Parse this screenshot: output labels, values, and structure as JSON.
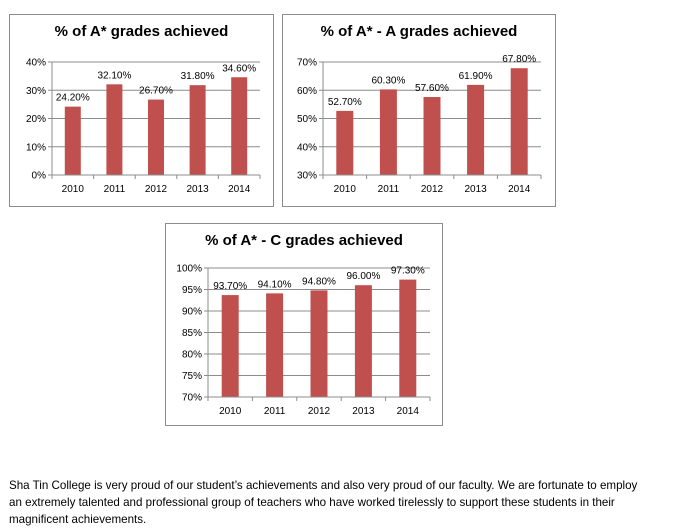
{
  "chart_data": [
    {
      "type": "bar",
      "title": "% of A* grades achieved",
      "categories": [
        "2010",
        "2011",
        "2012",
        "2013",
        "2014"
      ],
      "values": [
        24.2,
        32.1,
        26.7,
        31.8,
        34.6
      ],
      "value_labels": [
        "24.20%",
        "32.10%",
        "26.70%",
        "31.80%",
        "34.60%"
      ],
      "ylim": [
        0,
        40
      ],
      "yticks": [
        0,
        10,
        20,
        30,
        40
      ],
      "ytick_labels": [
        "0%",
        "10%",
        "20%",
        "30%",
        "40%"
      ],
      "grid": true,
      "bar_color": "#c0504d"
    },
    {
      "type": "bar",
      "title": "% of A* - A grades achieved",
      "categories": [
        "2010",
        "2011",
        "2012",
        "2013",
        "2014"
      ],
      "values": [
        52.7,
        60.3,
        57.6,
        61.9,
        67.8
      ],
      "value_labels": [
        "52.70%",
        "60.30%",
        "57.60%",
        "61.90%",
        "67.80%"
      ],
      "ylim": [
        30,
        70
      ],
      "yticks": [
        30,
        40,
        50,
        60,
        70
      ],
      "ytick_labels": [
        "30%",
        "40%",
        "50%",
        "60%",
        "70%"
      ],
      "grid": true,
      "bar_color": "#c0504d"
    },
    {
      "type": "bar",
      "title": "% of A* - C grades achieved",
      "categories": [
        "2010",
        "2011",
        "2012",
        "2013",
        "2014"
      ],
      "values": [
        93.7,
        94.1,
        94.8,
        96.0,
        97.3
      ],
      "value_labels": [
        "93.70%",
        "94.10%",
        "94.80%",
        "96.00%",
        "97.30%"
      ],
      "ylim": [
        70,
        100
      ],
      "yticks": [
        70,
        75,
        80,
        85,
        90,
        95,
        100
      ],
      "ytick_labels": [
        "70%",
        "75%",
        "80%",
        "85%",
        "90%",
        "95%",
        "100%"
      ],
      "grid": true,
      "bar_color": "#c0504d"
    }
  ],
  "caption": "Sha Tin College is very proud of our student’s achievements and also very proud of our faculty. We are fortunate to employ an extremely talented and professional group of teachers who have worked tirelessly to support these students in their magnificent achievements."
}
